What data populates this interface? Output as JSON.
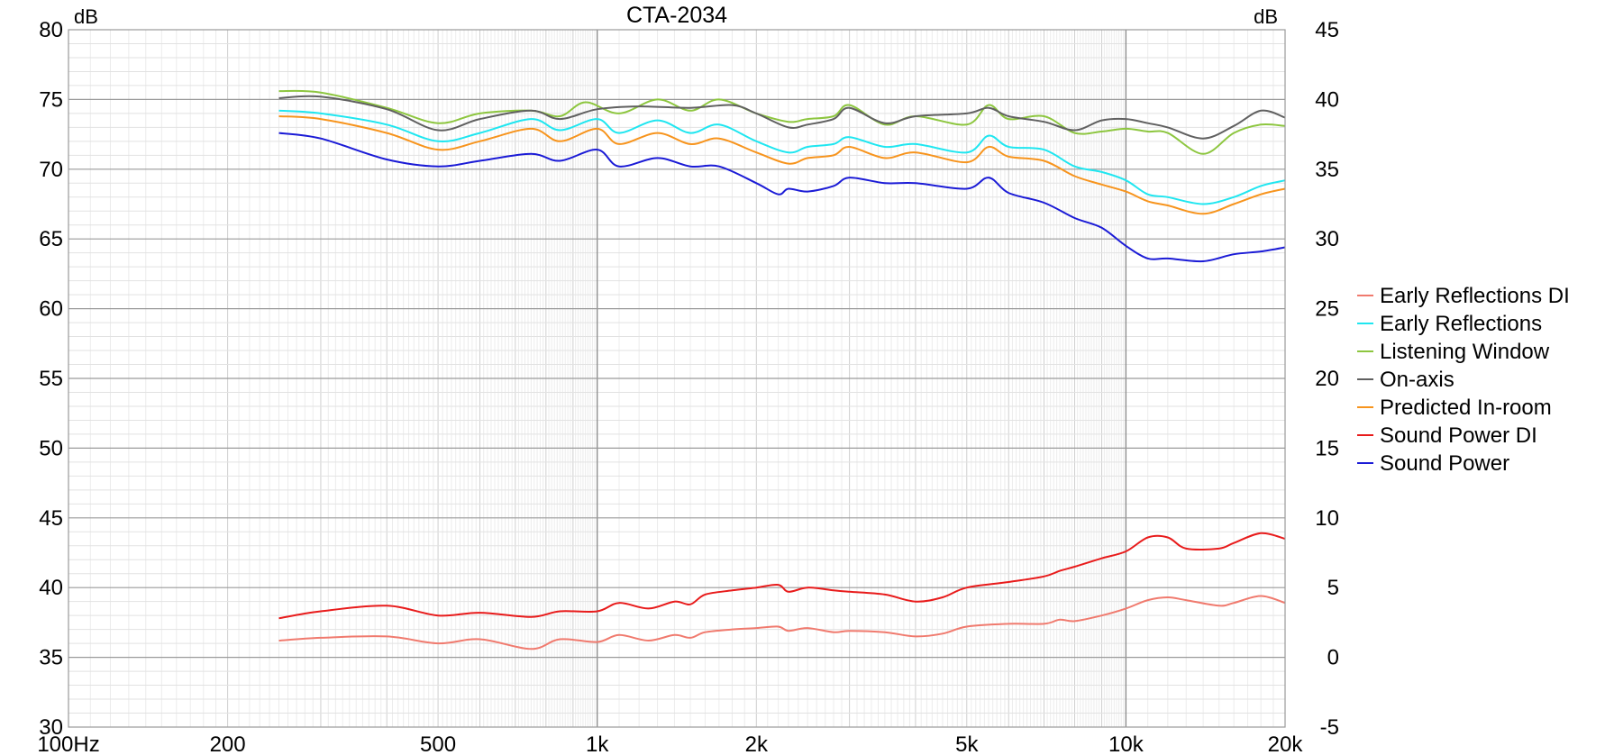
{
  "chart_data": {
    "type": "line",
    "title": "CTA-2034",
    "y_unit_left": "dB",
    "y_unit_right": "dB",
    "x_scale": "log",
    "xlim": [
      100,
      20000
    ],
    "ylim_left": [
      30,
      80
    ],
    "ylim_right": [
      -5,
      45
    ],
    "x_tick_labels": [
      {
        "value": 100,
        "label": "100Hz"
      },
      {
        "value": 200,
        "label": "200"
      },
      {
        "value": 500,
        "label": "500"
      },
      {
        "value": 1000,
        "label": "1k"
      },
      {
        "value": 2000,
        "label": "2k"
      },
      {
        "value": 5000,
        "label": "5k"
      },
      {
        "value": 10000,
        "label": "10k"
      },
      {
        "value": 20000,
        "label": "20k"
      }
    ],
    "y_left_ticks": [
      "30",
      "35",
      "40",
      "45",
      "50",
      "55",
      "60",
      "65",
      "70",
      "75",
      "80"
    ],
    "y_right_ticks": [
      "-5",
      "0",
      "5",
      "10",
      "15",
      "20",
      "25",
      "30",
      "35",
      "40",
      "45"
    ],
    "grid": true,
    "legend_position": "right",
    "series": [
      {
        "name": "Early Reflections DI",
        "axis": "right",
        "color": "#f07a6e",
        "x": [
          250,
          300,
          400,
          500,
          600,
          750,
          850,
          1000,
          1100,
          1250,
          1400,
          1500,
          1600,
          1800,
          2000,
          2200,
          2300,
          2500,
          2800,
          3000,
          3500,
          4000,
          4500,
          5000,
          6000,
          7000,
          7500,
          8000,
          9000,
          10000,
          11000,
          12000,
          13000,
          15000,
          16000,
          18000,
          20000
        ],
        "y": [
          1.2,
          1.4,
          1.5,
          1.0,
          1.3,
          0.6,
          1.3,
          1.1,
          1.6,
          1.2,
          1.6,
          1.4,
          1.8,
          2.0,
          2.1,
          2.2,
          1.9,
          2.1,
          1.8,
          1.9,
          1.8,
          1.5,
          1.7,
          2.2,
          2.4,
          2.4,
          2.7,
          2.6,
          3.0,
          3.5,
          4.1,
          4.3,
          4.1,
          3.7,
          3.9,
          4.4,
          3.9
        ]
      },
      {
        "name": "Early Reflections",
        "axis": "left",
        "color": "#1fe6f0",
        "x": [
          250,
          300,
          400,
          500,
          600,
          750,
          850,
          1000,
          1100,
          1300,
          1500,
          1700,
          2000,
          2300,
          2500,
          2800,
          3000,
          3500,
          4000,
          5000,
          5500,
          6000,
          7000,
          8000,
          9000,
          10000,
          11000,
          12000,
          14000,
          16000,
          18000,
          20000
        ],
        "y": [
          74.2,
          74.0,
          73.2,
          72.0,
          72.6,
          73.6,
          72.8,
          73.6,
          72.6,
          73.5,
          72.6,
          73.2,
          72.0,
          71.2,
          71.6,
          71.8,
          72.3,
          71.6,
          71.8,
          71.2,
          72.4,
          71.6,
          71.4,
          70.2,
          69.8,
          69.2,
          68.2,
          68.0,
          67.5,
          68.0,
          68.8,
          69.2
        ]
      },
      {
        "name": "Listening Window",
        "axis": "left",
        "color": "#8dc63f",
        "x": [
          250,
          300,
          400,
          500,
          600,
          750,
          850,
          950,
          1100,
          1300,
          1500,
          1700,
          2000,
          2300,
          2500,
          2800,
          3000,
          3500,
          4000,
          5000,
          5500,
          6000,
          7000,
          8000,
          9000,
          10000,
          11000,
          12000,
          14000,
          16000,
          18000,
          20000
        ],
        "y": [
          75.6,
          75.5,
          74.4,
          73.3,
          74.0,
          74.2,
          73.8,
          74.8,
          74.0,
          75.0,
          74.2,
          75.0,
          74.0,
          73.4,
          73.6,
          73.8,
          74.6,
          73.2,
          73.8,
          73.2,
          74.6,
          73.6,
          73.8,
          72.6,
          72.7,
          72.9,
          72.7,
          72.6,
          71.1,
          72.6,
          73.2,
          73.1
        ]
      },
      {
        "name": "On-axis",
        "axis": "left",
        "color": "#606060",
        "x": [
          250,
          300,
          400,
          500,
          600,
          750,
          850,
          1000,
          1200,
          1500,
          1800,
          2000,
          2300,
          2500,
          2800,
          3000,
          3500,
          4000,
          5000,
          5500,
          6000,
          7000,
          8000,
          9000,
          10000,
          11000,
          12000,
          14000,
          16000,
          18000,
          20000
        ],
        "y": [
          75.1,
          75.2,
          74.3,
          72.8,
          73.6,
          74.2,
          73.6,
          74.3,
          74.5,
          74.4,
          74.6,
          74.0,
          73.0,
          73.2,
          73.6,
          74.4,
          73.3,
          73.8,
          74.0,
          74.4,
          73.8,
          73.4,
          72.8,
          73.5,
          73.6,
          73.3,
          73.0,
          72.2,
          73.1,
          74.2,
          73.7
        ]
      },
      {
        "name": "Predicted In-room",
        "axis": "left",
        "color": "#f7941d",
        "x": [
          250,
          300,
          400,
          500,
          600,
          750,
          850,
          1000,
          1100,
          1300,
          1500,
          1700,
          2000,
          2300,
          2500,
          2800,
          3000,
          3500,
          4000,
          5000,
          5500,
          6000,
          7000,
          8000,
          9000,
          10000,
          11000,
          12000,
          14000,
          16000,
          18000,
          20000
        ],
        "y": [
          73.8,
          73.6,
          72.6,
          71.4,
          72.0,
          72.9,
          72.0,
          72.9,
          71.8,
          72.6,
          71.8,
          72.2,
          71.2,
          70.4,
          70.8,
          71.0,
          71.6,
          70.8,
          71.2,
          70.5,
          71.6,
          70.9,
          70.6,
          69.5,
          68.9,
          68.4,
          67.7,
          67.4,
          66.8,
          67.5,
          68.2,
          68.6
        ]
      },
      {
        "name": "Sound Power DI",
        "axis": "right",
        "color": "#e81b1b",
        "x": [
          250,
          300,
          400,
          500,
          600,
          750,
          850,
          1000,
          1100,
          1250,
          1400,
          1500,
          1600,
          1800,
          2000,
          2200,
          2300,
          2500,
          2800,
          3000,
          3500,
          4000,
          4500,
          5000,
          6000,
          7000,
          7500,
          8000,
          9000,
          10000,
          11000,
          12000,
          13000,
          15000,
          16000,
          18000,
          20000
        ],
        "y": [
          2.8,
          3.3,
          3.7,
          3.0,
          3.2,
          2.9,
          3.3,
          3.3,
          3.9,
          3.5,
          4.0,
          3.8,
          4.5,
          4.8,
          5.0,
          5.2,
          4.7,
          5.0,
          4.8,
          4.7,
          4.5,
          4.0,
          4.3,
          5.0,
          5.4,
          5.8,
          6.2,
          6.5,
          7.1,
          7.6,
          8.6,
          8.6,
          7.8,
          7.8,
          8.2,
          8.9,
          8.5
        ]
      },
      {
        "name": "Sound Power",
        "axis": "left",
        "color": "#1b1bd6",
        "x": [
          250,
          300,
          400,
          500,
          600,
          750,
          850,
          1000,
          1100,
          1300,
          1500,
          1700,
          2000,
          2200,
          2300,
          2500,
          2800,
          3000,
          3500,
          4000,
          5000,
          5500,
          6000,
          7000,
          8000,
          9000,
          10000,
          11000,
          12000,
          14000,
          16000,
          18000,
          20000
        ],
        "y": [
          72.6,
          72.2,
          70.7,
          70.2,
          70.6,
          71.1,
          70.6,
          71.4,
          70.2,
          70.8,
          70.2,
          70.2,
          69.0,
          68.2,
          68.6,
          68.4,
          68.8,
          69.4,
          69.0,
          69.0,
          68.6,
          69.4,
          68.3,
          67.6,
          66.5,
          65.8,
          64.5,
          63.6,
          63.6,
          63.4,
          63.9,
          64.1,
          64.4
        ]
      }
    ]
  }
}
